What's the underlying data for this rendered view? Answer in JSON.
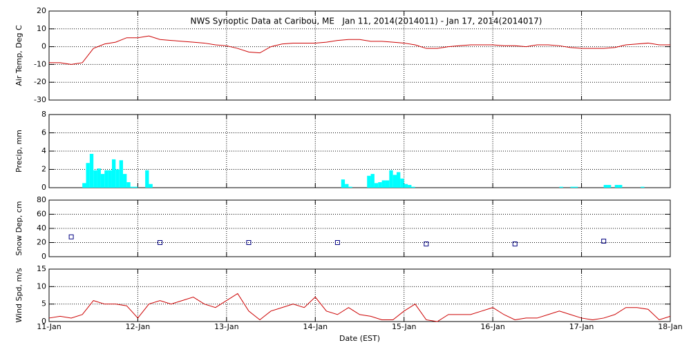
{
  "chart_data": [
    {
      "type": "line",
      "title": "NWS Synoptic Data at Caribou, ME   Jan 11, 2014(2014011) - Jan 17, 2014(2014017)",
      "ylabel": "Air Temp, Deg C",
      "color": "#cc0000",
      "grid": true,
      "xlim": [
        0,
        168
      ],
      "xticks": [
        0,
        24,
        48,
        72,
        96,
        120,
        144,
        168
      ],
      "ylim": [
        -30,
        20
      ],
      "yticks": [
        -30,
        -20,
        -10,
        0,
        10,
        20
      ],
      "x": [
        0,
        3,
        6,
        9,
        12,
        15,
        18,
        21,
        24,
        27,
        30,
        33,
        36,
        39,
        42,
        45,
        48,
        51,
        54,
        57,
        60,
        63,
        66,
        69,
        72,
        75,
        78,
        81,
        84,
        87,
        90,
        93,
        96,
        99,
        102,
        105,
        108,
        111,
        114,
        117,
        120,
        123,
        126,
        129,
        132,
        135,
        138,
        141,
        144,
        147,
        150,
        153,
        156,
        159,
        162,
        165,
        168
      ],
      "values": [
        -9,
        -9,
        -10,
        -9,
        -1,
        1.5,
        2.5,
        5,
        5,
        6,
        4,
        3.5,
        3,
        2.5,
        2,
        1,
        0.5,
        -1,
        -3,
        -3.5,
        0,
        1.5,
        2,
        2,
        2,
        2.5,
        3.5,
        4,
        4,
        3,
        3,
        2.5,
        2,
        1,
        -1,
        -1,
        0,
        0.5,
        1,
        1,
        1,
        0.5,
        0.5,
        0,
        1,
        1,
        0.5,
        -0.5,
        -1,
        -1,
        -1,
        -0.5,
        1,
        1.5,
        2,
        1,
        1
      ]
    },
    {
      "type": "bar",
      "ylabel": "Precip, mm",
      "color": "#00ffff",
      "grid": true,
      "xlim": [
        0,
        168
      ],
      "xticks": [
        0,
        24,
        48,
        72,
        96,
        120,
        144,
        168
      ],
      "ylim": [
        0,
        8
      ],
      "yticks": [
        0,
        2,
        4,
        6,
        8
      ],
      "x": [
        9,
        10,
        11,
        12,
        13,
        14,
        15,
        16,
        17,
        18,
        19,
        20,
        21,
        22,
        23,
        26,
        27,
        79,
        80,
        81,
        86,
        87,
        88,
        89,
        90,
        91,
        92,
        93,
        94,
        95,
        96,
        97,
        98,
        138,
        141,
        142,
        150,
        151,
        153,
        154,
        160
      ],
      "values": [
        0.5,
        2.7,
        3.7,
        1.9,
        2.1,
        1.5,
        1.9,
        1.9,
        3.1,
        2.0,
        3.0,
        1.5,
        0.6,
        0.1,
        0.1,
        1.9,
        0.4,
        0.9,
        0.4,
        0.1,
        1.3,
        1.5,
        0.5,
        0.6,
        0.8,
        0.8,
        1.9,
        1.4,
        1.7,
        1.0,
        0.4,
        0.3,
        0.1,
        0.1,
        0.1,
        0.1,
        0.3,
        0.3,
        0.3,
        0.3,
        0.1
      ]
    },
    {
      "type": "scatter",
      "ylabel": "Snow Dep, cm",
      "color": "#000080",
      "grid": true,
      "xlim": [
        0,
        168
      ],
      "xticks": [
        0,
        24,
        48,
        72,
        96,
        120,
        144,
        168
      ],
      "ylim": [
        0,
        80
      ],
      "yticks": [
        0,
        20,
        40,
        60,
        80
      ],
      "x": [
        6,
        30,
        54,
        78,
        102,
        126,
        150
      ],
      "values": [
        28,
        20,
        20,
        20,
        18,
        18,
        22
      ]
    },
    {
      "type": "line",
      "ylabel": "Wind Spd, m/s",
      "xlabel": "Date (EST)",
      "color": "#cc0000",
      "grid": true,
      "xlim": [
        0,
        168
      ],
      "xticks": [
        {
          "value": 0,
          "label": "11-Jan"
        },
        {
          "value": 24,
          "label": "12-Jan"
        },
        {
          "value": 48,
          "label": "13-Jan"
        },
        {
          "value": 72,
          "label": "14-Jan"
        },
        {
          "value": 96,
          "label": "15-Jan"
        },
        {
          "value": 120,
          "label": "16-Jan"
        },
        {
          "value": 144,
          "label": "17-Jan"
        },
        {
          "value": 168,
          "label": "18-Jan"
        }
      ],
      "ylim": [
        0,
        15
      ],
      "yticks": [
        0,
        5,
        10,
        15
      ],
      "x": [
        0,
        3,
        6,
        9,
        12,
        15,
        18,
        21,
        24,
        27,
        30,
        33,
        36,
        39,
        42,
        45,
        48,
        51,
        54,
        57,
        60,
        63,
        66,
        69,
        72,
        75,
        78,
        81,
        84,
        87,
        90,
        93,
        96,
        99,
        102,
        105,
        108,
        111,
        114,
        117,
        120,
        123,
        126,
        129,
        132,
        135,
        138,
        141,
        144,
        147,
        150,
        153,
        156,
        159,
        162,
        165,
        168
      ],
      "values": [
        1,
        1.5,
        1,
        2,
        6,
        5,
        5,
        4.5,
        1,
        5,
        6,
        5,
        6,
        7,
        5,
        4,
        6,
        8,
        3,
        0.5,
        3,
        4,
        5,
        4,
        7,
        3,
        2,
        4,
        2,
        1.5,
        0.5,
        0.5,
        3,
        5,
        0.5,
        0,
        2,
        2,
        2,
        3,
        4,
        2,
        0.5,
        1,
        1,
        2,
        3,
        2,
        1,
        0.5,
        1,
        2,
        4,
        4,
        3.5,
        0.5,
        1.5
      ]
    }
  ]
}
